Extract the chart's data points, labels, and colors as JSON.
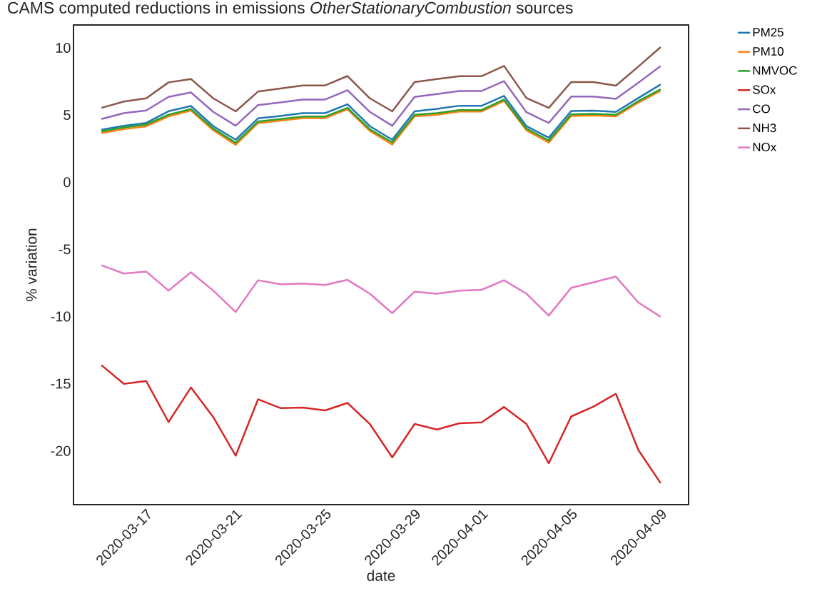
{
  "chart_data": {
    "type": "line",
    "title": "CAMS computed reductions in emissions *OtherStationaryCombustion* sources",
    "xlabel": "date",
    "ylabel": "% variation",
    "x": [
      "2020-03-15",
      "2020-03-16",
      "2020-03-17",
      "2020-03-18",
      "2020-03-19",
      "2020-03-20",
      "2020-03-21",
      "2020-03-22",
      "2020-03-23",
      "2020-03-24",
      "2020-03-25",
      "2020-03-26",
      "2020-03-27",
      "2020-03-28",
      "2020-03-29",
      "2020-03-30",
      "2020-03-31",
      "2020-04-01",
      "2020-04-02",
      "2020-04-03",
      "2020-04-04",
      "2020-04-05",
      "2020-04-06",
      "2020-04-07",
      "2020-04-08",
      "2020-04-09"
    ],
    "series": [
      {
        "name": "PM25",
        "color": "#1f77b4",
        "values": [
          3.9,
          4.2,
          4.41,
          5.28,
          5.67,
          4.17,
          3.16,
          4.75,
          4.93,
          5.14,
          5.14,
          5.8,
          4.17,
          3.16,
          5.27,
          5.46,
          5.69,
          5.69,
          6.42,
          4.17,
          3.31,
          5.3,
          5.32,
          5.23,
          6.26,
          7.27
        ]
      },
      {
        "name": "PM10",
        "color": "#ff7f0e",
        "values": [
          3.65,
          3.95,
          4.16,
          4.9,
          5.33,
          3.86,
          2.78,
          4.4,
          4.58,
          4.77,
          4.77,
          5.42,
          3.82,
          2.8,
          4.9,
          5.02,
          5.26,
          5.26,
          6.05,
          3.86,
          2.95,
          4.93,
          4.97,
          4.9,
          5.92,
          6.8
        ]
      },
      {
        "name": "NMVOC",
        "color": "#2ca02c",
        "values": [
          3.78,
          4.08,
          4.29,
          5.02,
          5.44,
          3.99,
          2.93,
          4.52,
          4.7,
          4.88,
          4.88,
          5.53,
          3.94,
          2.96,
          5.02,
          5.14,
          5.37,
          5.37,
          6.15,
          3.99,
          3.1,
          5.05,
          5.09,
          5.02,
          6.03,
          6.91
        ]
      },
      {
        "name": "SOx",
        "color": "#d62728",
        "values": [
          -13.62,
          -15.01,
          -14.8,
          -17.85,
          -15.28,
          -17.49,
          -20.36,
          -16.16,
          -16.81,
          -16.78,
          -16.99,
          -16.43,
          -18.0,
          -20.48,
          -18.0,
          -18.41,
          -17.94,
          -17.88,
          -16.73,
          -18.0,
          -20.92,
          -17.44,
          -16.7,
          -15.75,
          -19.92,
          -22.4
        ]
      },
      {
        "name": "CO",
        "color": "#9467bd",
        "values": [
          4.7,
          5.14,
          5.34,
          6.35,
          6.68,
          5.23,
          4.2,
          5.74,
          5.94,
          6.15,
          6.15,
          6.85,
          5.23,
          4.2,
          6.35,
          6.56,
          6.79,
          6.79,
          7.52,
          5.21,
          4.41,
          6.37,
          6.37,
          6.2,
          7.4,
          8.65
        ]
      },
      {
        "name": "NH3",
        "color": "#8c564b",
        "values": [
          5.53,
          6.0,
          6.24,
          7.43,
          7.68,
          6.24,
          5.27,
          6.74,
          6.97,
          7.2,
          7.2,
          7.9,
          6.24,
          5.27,
          7.45,
          7.68,
          7.89,
          7.89,
          8.65,
          6.26,
          5.53,
          7.45,
          7.45,
          7.18,
          8.6,
          10.05
        ]
      },
      {
        "name": "NOx",
        "color": "#e377c2",
        "values": [
          -6.18,
          -6.8,
          -6.65,
          -8.07,
          -6.71,
          -8.07,
          -9.66,
          -7.3,
          -7.6,
          -7.54,
          -7.65,
          -7.27,
          -8.3,
          -9.75,
          -8.15,
          -8.3,
          -8.07,
          -8.01,
          -7.3,
          -8.3,
          -9.93,
          -7.86,
          -7.45,
          -7.03,
          -8.95,
          -10.02
        ]
      }
    ],
    "xlim": [
      "2020-03-13T18:00",
      "2020-04-10T06:00"
    ],
    "xticks": [
      "2020-03-17",
      "2020-03-21",
      "2020-03-25",
      "2020-03-29",
      "2020-04-01",
      "2020-04-05",
      "2020-04-09"
    ],
    "ylim": [
      -24.0,
      11.7
    ],
    "yticks": [
      -20,
      -15,
      -10,
      -5,
      0,
      5,
      10
    ],
    "legend": "top right",
    "line_style": "solid"
  }
}
